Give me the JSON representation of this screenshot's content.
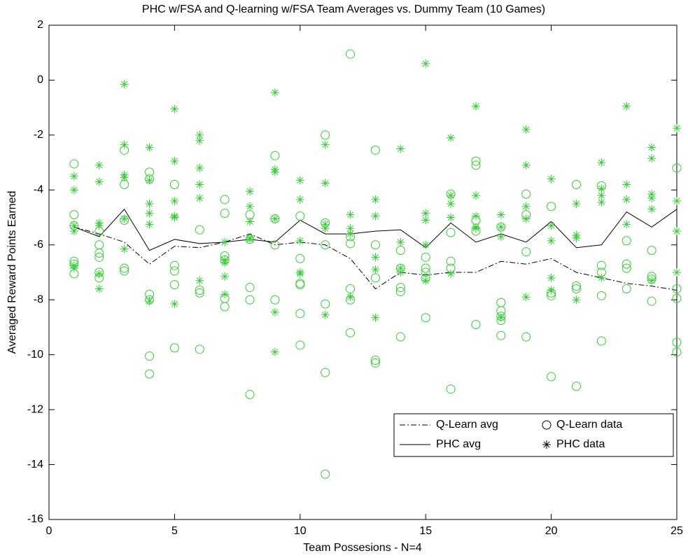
{
  "chart_data": {
    "type": "line",
    "title": "PHC w/FSA and Q-learning w/FSA Team Averages vs. Dummy Team (10 Games)",
    "xlabel": "Team Possesions - N=4",
    "ylabel": "Averaged Reward Points Earned",
    "xlim": [
      0,
      25
    ],
    "ylim": [
      -16,
      2
    ],
    "xticks": [
      0,
      5,
      10,
      15,
      20,
      25
    ],
    "yticks": [
      -16,
      -14,
      -12,
      -10,
      -8,
      -6,
      -4,
      -2,
      0,
      2
    ],
    "legend": "lower right",
    "x": [
      1,
      2,
      3,
      4,
      5,
      6,
      7,
      8,
      9,
      10,
      11,
      12,
      13,
      14,
      15,
      16,
      17,
      18,
      19,
      20,
      21,
      22,
      23,
      24,
      25
    ],
    "series": [
      {
        "name": "Q-Learn avg",
        "color": "#000000",
        "style": "dashdot",
        "values": [
          -5.35,
          -5.6,
          -5.9,
          -6.7,
          -6.05,
          -6.1,
          -5.9,
          -5.6,
          -6.0,
          -5.9,
          -6.0,
          -6.5,
          -7.6,
          -7.0,
          -7.1,
          -7.0,
          -7.0,
          -6.6,
          -6.7,
          -6.5,
          -7.0,
          -7.2,
          -7.4,
          -7.5,
          -7.65
        ]
      },
      {
        "name": "PHC avg",
        "color": "#000000",
        "style": "solid",
        "values": [
          -5.35,
          -5.7,
          -4.7,
          -6.2,
          -5.8,
          -5.95,
          -5.9,
          -5.8,
          -5.9,
          -5.1,
          -5.6,
          -5.6,
          -5.5,
          -5.45,
          -6.1,
          -5.2,
          -5.9,
          -5.6,
          -5.9,
          -5.15,
          -6.1,
          -6.0,
          -4.8,
          -5.35,
          -4.7
        ]
      },
      {
        "name": "Q-Learn data",
        "color": "#33cc33",
        "marker": "o",
        "groups": [
          {
            "x": 1,
            "values": [
              -3.05,
              -4.9,
              -5.3,
              -6.6,
              -6.7,
              -7.05
            ]
          },
          {
            "x": 2,
            "values": [
              -5.5,
              -6.0,
              -6.3,
              -6.45,
              -7.0,
              -7.2
            ]
          },
          {
            "x": 3,
            "values": [
              -2.55,
              -3.8,
              -5.1,
              -6.85,
              -6.95
            ]
          },
          {
            "x": 4,
            "values": [
              -3.35,
              -3.6,
              -7.8,
              -8.0,
              -10.05,
              -10.7
            ]
          },
          {
            "x": 5,
            "values": [
              -3.8,
              -6.75,
              -6.95,
              -7.45,
              -9.75
            ]
          },
          {
            "x": 6,
            "values": [
              -5.45,
              -7.65,
              -7.75,
              -9.8
            ]
          },
          {
            "x": 7,
            "values": [
              -4.35,
              -4.85,
              -6.4,
              -6.55,
              -7.95,
              -8.25
            ]
          },
          {
            "x": 8,
            "values": [
              -4.9,
              -5.8,
              -7.55,
              -8.0,
              -11.45
            ]
          },
          {
            "x": 9,
            "values": [
              -2.75,
              -5.05,
              -6.0,
              -8.0
            ]
          },
          {
            "x": 10,
            "values": [
              -4.95,
              -6.5,
              -7.4,
              -7.45,
              -8.5,
              -9.65
            ]
          },
          {
            "x": 11,
            "values": [
              -2.0,
              -5.2,
              -6.0,
              -8.15,
              -10.65,
              -14.35
            ]
          },
          {
            "x": 12,
            "values": [
              0.95,
              -5.7,
              -5.95,
              -7.6,
              -8.0,
              -9.2
            ]
          },
          {
            "x": 13,
            "values": [
              -2.55,
              -6.0,
              -7.2,
              -10.2,
              -10.3
            ]
          },
          {
            "x": 14,
            "values": [
              -6.2,
              -6.85,
              -7.55,
              -7.7,
              -9.35
            ]
          },
          {
            "x": 15,
            "values": [
              -6.45,
              -6.85,
              -7.0,
              -7.2,
              -8.65
            ]
          },
          {
            "x": 16,
            "values": [
              -4.15,
              -5.55,
              -6.6,
              -6.85,
              -11.25
            ]
          },
          {
            "x": 17,
            "values": [
              -2.95,
              -3.1,
              -5.1,
              -5.5,
              -8.9
            ]
          },
          {
            "x": 18,
            "values": [
              -5.35,
              -8.1,
              -8.4,
              -8.6,
              -8.75,
              -9.3
            ]
          },
          {
            "x": 19,
            "values": [
              -4.15,
              -4.9,
              -6.25,
              -9.35
            ]
          },
          {
            "x": 20,
            "values": [
              -4.6,
              -7.75,
              -7.85,
              -10.8
            ]
          },
          {
            "x": 21,
            "values": [
              -3.8,
              -7.5,
              -7.6,
              -11.15
            ]
          },
          {
            "x": 22,
            "values": [
              -3.85,
              -6.75,
              -7.0,
              -7.85,
              -9.5
            ]
          },
          {
            "x": 23,
            "values": [
              -5.85,
              -6.7,
              -6.85,
              -7.6
            ]
          },
          {
            "x": 24,
            "values": [
              -6.2,
              -7.15,
              -7.25,
              -8.05
            ]
          },
          {
            "x": 25,
            "values": [
              -3.2,
              -7.6,
              -7.95,
              -9.55,
              -9.9
            ]
          }
        ]
      },
      {
        "name": "PHC data",
        "color": "#33cc33",
        "marker": "*",
        "groups": [
          {
            "x": 1,
            "values": [
              -3.5,
              -4.0,
              -5.3,
              -5.5,
              -6.75,
              -6.85
            ]
          },
          {
            "x": 2,
            "values": [
              -3.1,
              -3.7,
              -5.2,
              -5.3,
              -7.05,
              -7.6
            ]
          },
          {
            "x": 3,
            "values": [
              -0.15,
              -2.35,
              -3.45,
              -3.55,
              -5.05,
              -6.15
            ]
          },
          {
            "x": 4,
            "values": [
              -2.45,
              -3.65,
              -4.5,
              -4.85,
              -5.25,
              -8.05
            ]
          },
          {
            "x": 5,
            "values": [
              -1.05,
              -2.95,
              -4.4,
              -4.95,
              -5.0,
              -8.15
            ]
          },
          {
            "x": 6,
            "values": [
              -2.0,
              -2.2,
              -3.2,
              -3.8,
              -4.3,
              -7.3
            ]
          },
          {
            "x": 7,
            "values": [
              -5.9,
              -6.55,
              -6.65,
              -7.15,
              -7.8
            ]
          },
          {
            "x": 8,
            "values": [
              -4.05,
              -4.6,
              -5.15,
              -5.75,
              -5.8
            ]
          },
          {
            "x": 9,
            "values": [
              -0.45,
              -3.25,
              -3.35,
              -5.05,
              -8.45,
              -9.9
            ]
          },
          {
            "x": 10,
            "values": [
              -3.65,
              -4.35,
              -5.85,
              -7.0,
              -7.05
            ]
          },
          {
            "x": 11,
            "values": [
              -2.35,
              -3.75,
              -5.25,
              -5.4,
              -8.55
            ]
          },
          {
            "x": 12,
            "values": [
              -4.9,
              -5.4,
              -5.6,
              -7.9
            ]
          },
          {
            "x": 13,
            "values": [
              -4.35,
              -4.95,
              -6.45,
              -6.9,
              -8.65
            ]
          },
          {
            "x": 14,
            "values": [
              -2.5,
              -5.9,
              -6.85,
              -7.0
            ]
          },
          {
            "x": 15,
            "values": [
              0.6,
              -4.85,
              -5.1,
              -6.0,
              -7.3
            ]
          },
          {
            "x": 16,
            "values": [
              -2.1,
              -4.2,
              -4.5,
              -5.0,
              -7.05
            ]
          },
          {
            "x": 17,
            "values": [
              -0.95,
              -4.2,
              -4.95,
              -5.35,
              -5.4
            ]
          },
          {
            "x": 18,
            "values": [
              -4.9,
              -5.35,
              -5.7,
              -8.65
            ]
          },
          {
            "x": 19,
            "values": [
              -1.8,
              -3.1,
              -4.6,
              -5.05,
              -7.9
            ]
          },
          {
            "x": 20,
            "values": [
              -3.6,
              -5.3,
              -5.85,
              -7.2,
              -7.65
            ]
          },
          {
            "x": 21,
            "values": [
              -4.5,
              -5.65,
              -5.75,
              -8.0
            ]
          },
          {
            "x": 22,
            "values": [
              -3.0,
              -3.95,
              -4.2,
              -4.45,
              -7.2
            ]
          },
          {
            "x": 23,
            "values": [
              -0.95,
              -3.8,
              -4.35,
              -5.25
            ]
          },
          {
            "x": 24,
            "values": [
              -2.45,
              -2.85,
              -4.15,
              -4.3,
              -4.7,
              -7.3
            ]
          },
          {
            "x": 25,
            "values": [
              -1.75,
              -4.4,
              -5.5,
              -7.0
            ]
          }
        ]
      }
    ]
  }
}
